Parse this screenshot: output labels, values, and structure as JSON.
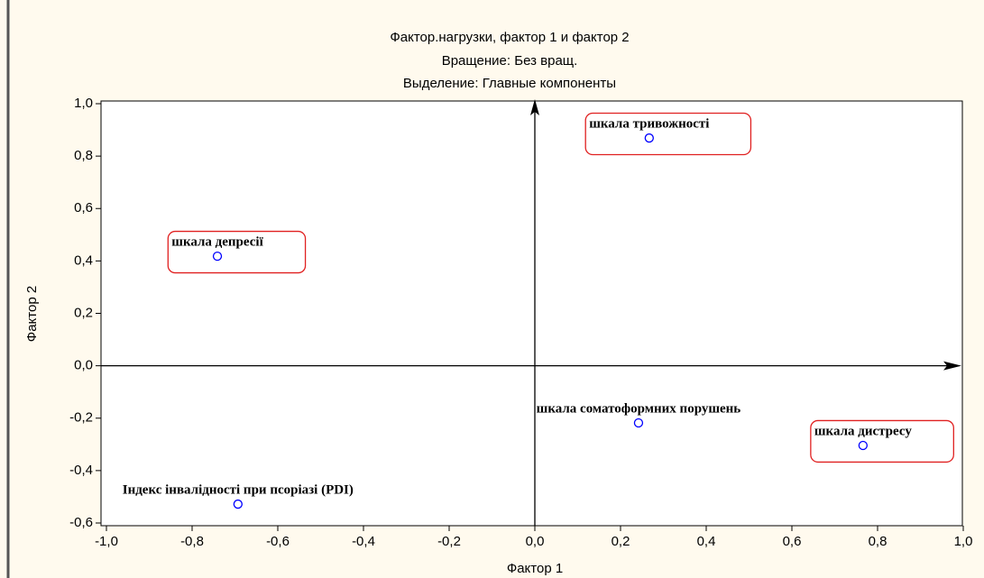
{
  "chart_data": {
    "type": "scatter",
    "title": "Фактор.нагрузки, фактор 1 и фактор   2",
    "subtitle": [
      "Вращение: Без вращ.",
      "Выделение: Главные компоненты"
    ],
    "x_label": "Фактор 1",
    "y_label": "Фактор 2",
    "labels": [
      "шкала тривожності",
      "шкала депресії",
      "шкала соматоформних порушень",
      "шкала дистресу",
      "Індекс інвалідності при псоріазі (PDI)"
    ],
    "x": [
      0.267,
      -0.741,
      0.242,
      0.766,
      -0.693
    ],
    "values": [
      0.869,
      0.418,
      -0.218,
      -0.304,
      -0.528
    ],
    "highlighted": [
      true,
      true,
      false,
      true,
      false
    ],
    "color": "#0000ff",
    "highlight_color": "#e02020",
    "xlim": [
      -1.0,
      1.0
    ],
    "ylim": [
      -0.6,
      1.0
    ],
    "xticks": [
      {
        "value": -1.0,
        "label": "-1,0"
      },
      {
        "value": -0.8,
        "label": "-0,8"
      },
      {
        "value": -0.6,
        "label": "-0,6"
      },
      {
        "value": -0.4,
        "label": "-0,4"
      },
      {
        "value": -0.2,
        "label": "-0,2"
      },
      {
        "value": 0.0,
        "label": "0,0"
      },
      {
        "value": 0.2,
        "label": "0,2"
      },
      {
        "value": 0.4,
        "label": "0,4"
      },
      {
        "value": 0.6,
        "label": "0,6"
      },
      {
        "value": 0.8,
        "label": "0,8"
      },
      {
        "value": 1.0,
        "label": "1,0"
      }
    ],
    "yticks": [
      {
        "value": 1.0,
        "label": "1,0"
      },
      {
        "value": 0.8,
        "label": "0,8"
      },
      {
        "value": 0.6,
        "label": "0,6"
      },
      {
        "value": 0.4,
        "label": "0,4"
      },
      {
        "value": 0.2,
        "label": "0,2"
      },
      {
        "value": 0.0,
        "label": "0,0"
      },
      {
        "value": -0.2,
        "label": "-0,2"
      },
      {
        "value": -0.4,
        "label": "-0,4"
      },
      {
        "value": -0.6,
        "label": "-0,6"
      }
    ]
  }
}
